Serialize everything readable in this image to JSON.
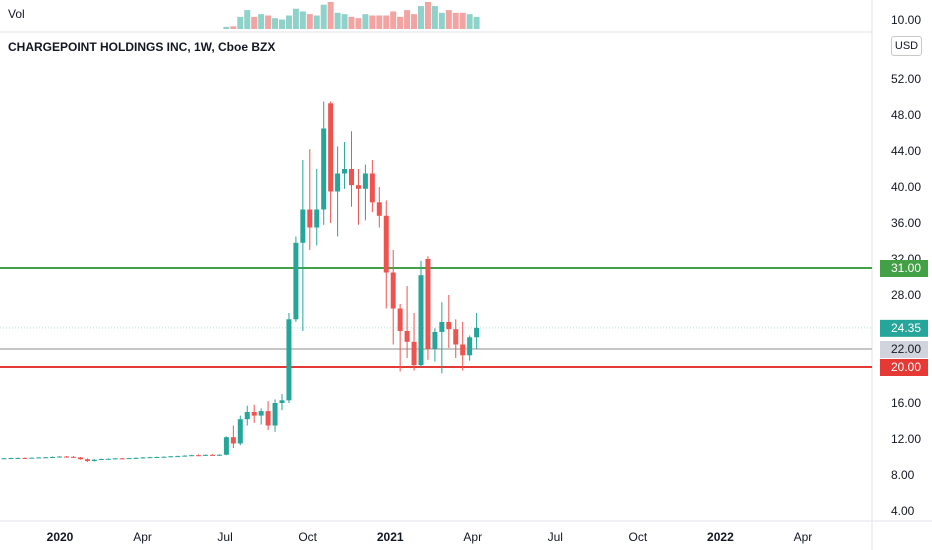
{
  "header": {
    "vol_label": "Vol",
    "title": "CHARGEPOINT HOLDINGS INC, 1W, Cboe BZX"
  },
  "currency_button": "USD",
  "colors": {
    "up": "#26a69a",
    "down": "#ef5350",
    "resistance_line": "#43a047",
    "support_line": "#e53935",
    "last_price_line": "#b2dfdb",
    "mid_line": "#c6c6c6",
    "text": "#131722"
  },
  "chart_data": {
    "type": "candlestick",
    "title": "CHARGEPOINT HOLDINGS INC, 1W, Cboe BZX",
    "interval": "1W",
    "currency": "USD",
    "y_axis": {
      "ticks": [
        4,
        8,
        12,
        16,
        20,
        24,
        28,
        32,
        36,
        40,
        44,
        48,
        52
      ],
      "tick_labels": [
        "4.00",
        "8.00",
        "12.00",
        "16.00",
        "20.00",
        "24.00",
        "28.00",
        "32.00",
        "36.00",
        "40.00",
        "44.00",
        "48.00",
        "52.00"
      ],
      "range": [
        2.5,
        56
      ]
    },
    "x_axis": {
      "tick_labels": [
        "2020",
        "Apr",
        "Jul",
        "Oct",
        "2021",
        "Apr",
        "Jul",
        "Oct",
        "2022",
        "Apr"
      ],
      "tick_weeks_from_2020": [
        0,
        13,
        26,
        39,
        52,
        65,
        78,
        91,
        104,
        117
      ],
      "bold_labels": [
        "2020",
        "2021",
        "2022"
      ]
    },
    "volume_scale_label": "10.00",
    "horizontal_lines": [
      {
        "price": 31.0,
        "label": "31.00",
        "role": "resistance"
      },
      {
        "price": 20.0,
        "label": "20.00",
        "role": "support"
      },
      {
        "price": 22.0,
        "label": "22.00",
        "role": "level"
      },
      {
        "price": 24.35,
        "label": "24.35",
        "role": "last_price"
      }
    ],
    "candles": [
      {
        "o": 9.85,
        "h": 9.9,
        "l": 9.8,
        "c": 9.86
      },
      {
        "o": 9.86,
        "h": 9.92,
        "l": 9.82,
        "c": 9.88
      },
      {
        "o": 9.88,
        "h": 9.93,
        "l": 9.83,
        "c": 9.9
      },
      {
        "o": 9.9,
        "h": 9.95,
        "l": 9.85,
        "c": 9.87
      },
      {
        "o": 9.87,
        "h": 9.94,
        "l": 9.84,
        "c": 9.92
      },
      {
        "o": 9.92,
        "h": 9.98,
        "l": 9.88,
        "c": 9.95
      },
      {
        "o": 9.95,
        "h": 10.0,
        "l": 9.9,
        "c": 9.97
      },
      {
        "o": 9.97,
        "h": 10.05,
        "l": 9.93,
        "c": 10.0
      },
      {
        "o": 10.0,
        "h": 10.1,
        "l": 9.95,
        "c": 10.05
      },
      {
        "o": 10.05,
        "h": 10.12,
        "l": 9.98,
        "c": 10.02
      },
      {
        "o": 10.02,
        "h": 10.1,
        "l": 9.9,
        "c": 9.95
      },
      {
        "o": 9.95,
        "h": 10.0,
        "l": 9.7,
        "c": 9.75
      },
      {
        "o": 9.75,
        "h": 9.85,
        "l": 9.45,
        "c": 9.55
      },
      {
        "o": 9.55,
        "h": 9.75,
        "l": 9.5,
        "c": 9.7
      },
      {
        "o": 9.7,
        "h": 9.82,
        "l": 9.65,
        "c": 9.78
      },
      {
        "o": 9.78,
        "h": 9.85,
        "l": 9.72,
        "c": 9.8
      },
      {
        "o": 9.8,
        "h": 9.88,
        "l": 9.75,
        "c": 9.85
      },
      {
        "o": 9.85,
        "h": 9.9,
        "l": 9.8,
        "c": 9.82
      },
      {
        "o": 9.82,
        "h": 9.9,
        "l": 9.78,
        "c": 9.88
      },
      {
        "o": 9.88,
        "h": 9.95,
        "l": 9.84,
        "c": 9.9
      },
      {
        "o": 9.9,
        "h": 10.0,
        "l": 9.86,
        "c": 9.95
      },
      {
        "o": 9.95,
        "h": 10.02,
        "l": 9.9,
        "c": 9.98
      },
      {
        "o": 9.98,
        "h": 10.05,
        "l": 9.93,
        "c": 10.0
      },
      {
        "o": 10.0,
        "h": 10.06,
        "l": 9.95,
        "c": 10.03
      },
      {
        "o": 10.03,
        "h": 10.1,
        "l": 9.98,
        "c": 10.08
      },
      {
        "o": 10.08,
        "h": 10.15,
        "l": 10.02,
        "c": 10.1
      },
      {
        "o": 10.1,
        "h": 10.2,
        "l": 10.05,
        "c": 10.15
      },
      {
        "o": 10.15,
        "h": 10.25,
        "l": 10.1,
        "c": 10.2
      },
      {
        "o": 10.2,
        "h": 10.3,
        "l": 10.1,
        "c": 10.18
      },
      {
        "o": 10.18,
        "h": 10.28,
        "l": 10.12,
        "c": 10.24
      },
      {
        "o": 10.24,
        "h": 10.32,
        "l": 10.15,
        "c": 10.2
      },
      {
        "o": 10.2,
        "h": 10.3,
        "l": 10.12,
        "c": 10.25
      },
      {
        "o": 10.25,
        "h": 12.3,
        "l": 10.2,
        "c": 12.2
      },
      {
        "o": 12.2,
        "h": 13.5,
        "l": 11.0,
        "c": 11.5
      },
      {
        "o": 11.5,
        "h": 14.6,
        "l": 11.3,
        "c": 14.2
      },
      {
        "o": 14.2,
        "h": 15.7,
        "l": 13.5,
        "c": 15.0
      },
      {
        "o": 15.0,
        "h": 15.8,
        "l": 13.8,
        "c": 14.6
      },
      {
        "o": 14.6,
        "h": 15.4,
        "l": 13.6,
        "c": 15.1
      },
      {
        "o": 15.1,
        "h": 16.2,
        "l": 13.0,
        "c": 13.5
      },
      {
        "o": 13.5,
        "h": 16.4,
        "l": 12.8,
        "c": 16.0
      },
      {
        "o": 16.0,
        "h": 17.0,
        "l": 15.2,
        "c": 16.3
      },
      {
        "o": 16.3,
        "h": 26.0,
        "l": 16.0,
        "c": 25.3
      },
      {
        "o": 25.3,
        "h": 34.5,
        "l": 25.0,
        "c": 33.8
      },
      {
        "o": 33.8,
        "h": 43.0,
        "l": 24.0,
        "c": 37.5
      },
      {
        "o": 37.5,
        "h": 44.2,
        "l": 33.0,
        "c": 35.5
      },
      {
        "o": 35.5,
        "h": 42.0,
        "l": 33.5,
        "c": 37.5
      },
      {
        "o": 37.5,
        "h": 49.5,
        "l": 35.8,
        "c": 46.5
      },
      {
        "o": 49.3,
        "h": 49.5,
        "l": 36.0,
        "c": 39.5
      },
      {
        "o": 39.5,
        "h": 44.5,
        "l": 34.5,
        "c": 41.5
      },
      {
        "o": 41.5,
        "h": 45.0,
        "l": 39.8,
        "c": 42.0
      },
      {
        "o": 42.0,
        "h": 46.2,
        "l": 37.8,
        "c": 40.2
      },
      {
        "o": 40.2,
        "h": 42.0,
        "l": 35.8,
        "c": 39.8
      },
      {
        "o": 39.8,
        "h": 42.5,
        "l": 36.3,
        "c": 41.5
      },
      {
        "o": 41.5,
        "h": 43.0,
        "l": 37.2,
        "c": 38.3
      },
      {
        "o": 38.3,
        "h": 40.0,
        "l": 35.5,
        "c": 36.8
      },
      {
        "o": 36.8,
        "h": 38.5,
        "l": 26.5,
        "c": 30.5
      },
      {
        "o": 30.5,
        "h": 33.0,
        "l": 22.5,
        "c": 26.5
      },
      {
        "o": 26.5,
        "h": 27.0,
        "l": 19.5,
        "c": 24.0
      },
      {
        "o": 24.0,
        "h": 29.0,
        "l": 21.0,
        "c": 22.8
      },
      {
        "o": 22.8,
        "h": 26.0,
        "l": 19.6,
        "c": 20.2
      },
      {
        "o": 20.2,
        "h": 31.8,
        "l": 20.0,
        "c": 30.2
      },
      {
        "o": 32.0,
        "h": 32.3,
        "l": 20.8,
        "c": 22.0
      },
      {
        "o": 22.0,
        "h": 24.3,
        "l": 20.6,
        "c": 23.9
      },
      {
        "o": 23.9,
        "h": 27.2,
        "l": 19.3,
        "c": 25.0
      },
      {
        "o": 25.0,
        "h": 28.0,
        "l": 22.1,
        "c": 24.2
      },
      {
        "o": 24.2,
        "h": 25.3,
        "l": 21.0,
        "c": 22.5
      },
      {
        "o": 22.5,
        "h": 25.0,
        "l": 19.6,
        "c": 21.3
      },
      {
        "o": 21.3,
        "h": 23.5,
        "l": 20.7,
        "c": 23.3
      },
      {
        "o": 23.3,
        "h": 26.0,
        "l": 22.0,
        "c": 24.35
      }
    ],
    "volume": [
      0,
      0,
      0,
      0,
      0,
      0,
      0,
      0,
      0,
      0,
      0,
      0,
      0,
      0,
      0,
      0,
      0,
      0,
      0,
      0,
      0,
      0,
      0,
      0,
      0,
      0,
      0,
      0,
      0,
      0,
      0,
      0,
      0.08,
      0.1,
      0.45,
      0.7,
      0.45,
      0.55,
      0.5,
      0.4,
      0.35,
      0.5,
      0.75,
      0.65,
      0.55,
      0.5,
      0.9,
      1.0,
      0.6,
      0.55,
      0.45,
      0.4,
      0.55,
      0.5,
      0.5,
      0.5,
      0.65,
      0.45,
      0.7,
      0.55,
      0.85,
      1.0,
      0.85,
      0.6,
      0.7,
      0.6,
      0.6,
      0.55,
      0.45
    ]
  }
}
